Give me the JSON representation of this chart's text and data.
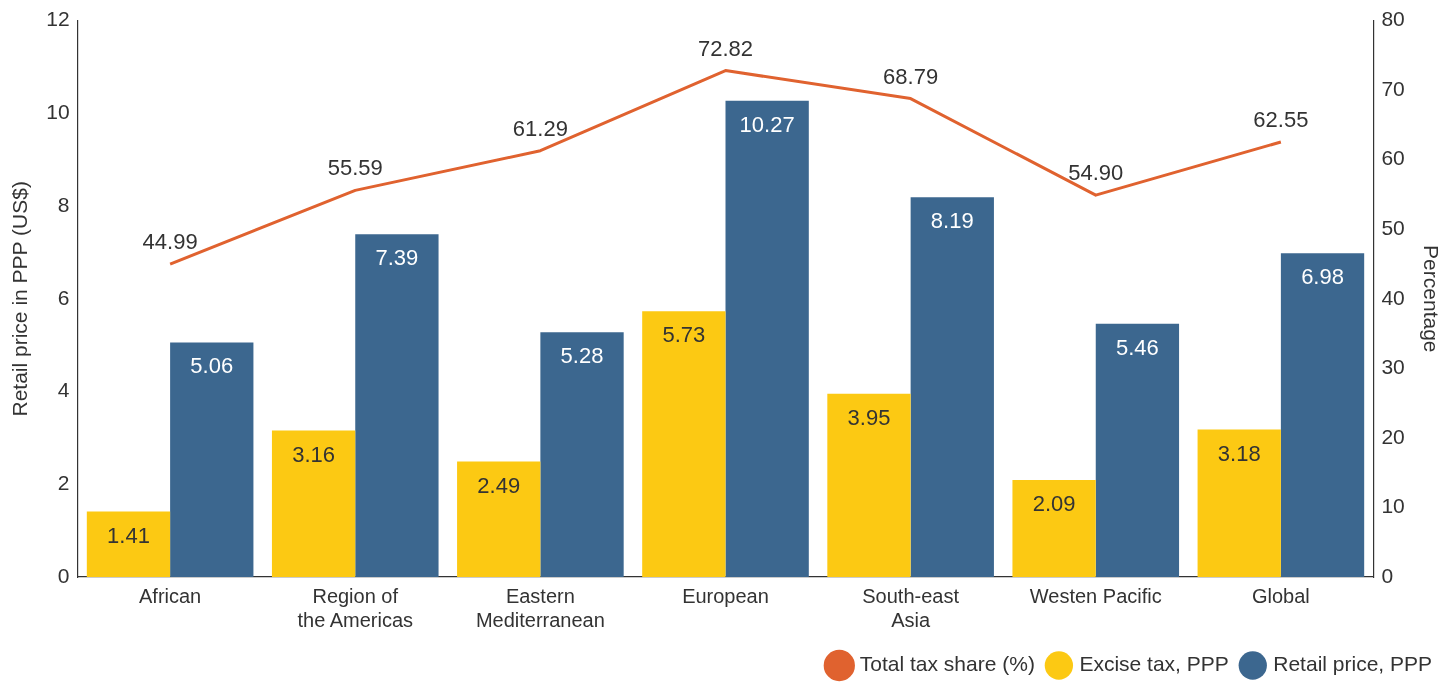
{
  "chart_data": {
    "type": "bar",
    "categories": [
      "African",
      "Region of the Americas",
      "Eastern Mediterranean",
      "European",
      "South-east Asia",
      "Westen Pacific",
      "Global"
    ],
    "series": [
      {
        "name": "Excise tax, PPP",
        "color": "#fcc913",
        "values": [
          1.41,
          3.16,
          2.49,
          5.73,
          3.95,
          2.09,
          3.18
        ]
      },
      {
        "name": "Retail price, PPP",
        "color": "#3c678f",
        "values": [
          5.06,
          7.39,
          5.28,
          10.27,
          8.19,
          5.46,
          6.98
        ]
      },
      {
        "name": "Total tax share (%)",
        "type": "line",
        "axis": "y2",
        "color": "#e0622f",
        "values": [
          44.99,
          55.59,
          61.29,
          72.82,
          68.79,
          54.9,
          62.55
        ],
        "value_labels": [
          "44.99",
          "55.59",
          "61.29",
          "72.82",
          "68.79",
          "54.90",
          "62.55"
        ]
      }
    ],
    "ylabel": "Retail price in PPP (US$)",
    "y2label": "Percentage",
    "ylim": [
      0,
      12
    ],
    "yticks": [
      0,
      2,
      4,
      6,
      8,
      10,
      12
    ],
    "y2lim": [
      0,
      80
    ],
    "y2ticks": [
      0,
      10,
      20,
      30,
      40,
      50,
      60,
      70,
      80
    ],
    "data_labels": true,
    "grid": false,
    "legend": "bottom right",
    "marker": "none",
    "line_style": "solid"
  }
}
